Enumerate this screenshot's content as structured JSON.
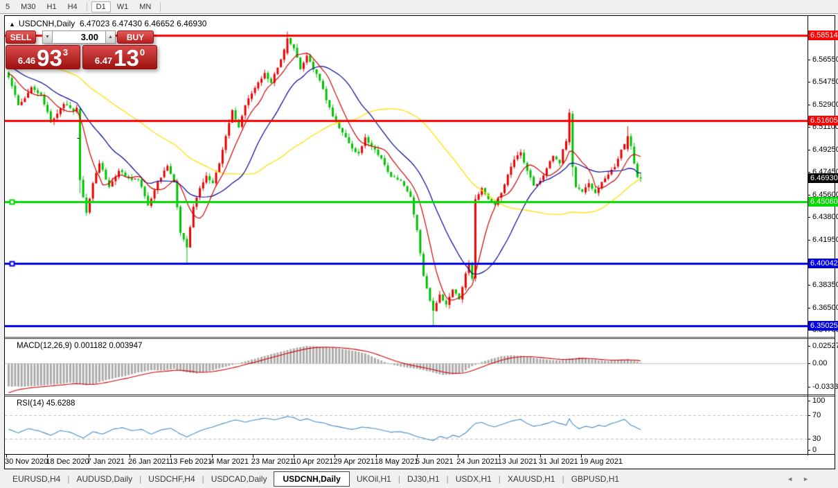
{
  "toolbar": {
    "timeframes": [
      {
        "label": "5",
        "selected": false
      },
      {
        "label": "M30",
        "selected": false
      },
      {
        "label": "H1",
        "selected": false
      },
      {
        "label": "H4",
        "selected": false
      },
      {
        "label": "D1",
        "selected": true
      },
      {
        "label": "W1",
        "selected": false
      },
      {
        "label": "MN",
        "selected": false
      }
    ],
    "separator_after": [
      3,
      6
    ]
  },
  "chart": {
    "title_arrow": "▲",
    "symbol_title": "USDCNH,Daily",
    "ohlc_text": "6.47023 6.47430 6.46652 6.46930",
    "annotation_dash": "-",
    "trade_panel": {
      "sell_label": "SELL",
      "buy_label": "BUY",
      "volume": "3.00",
      "spin_down": "▼",
      "spin_up": "▲",
      "bid_small": "6.46",
      "bid_big": "93",
      "bid_sup": "3",
      "ask_small": "6.47",
      "ask_big": "13",
      "ask_sup": "0"
    }
  },
  "chart_data": [
    {
      "type": "candlestick",
      "title": "USDCNH,Daily",
      "ohlc_current": {
        "open": 6.47023,
        "high": 6.4743,
        "low": 6.46652,
        "close": 6.4693
      },
      "bars": 196,
      "up_color": "#e80000",
      "down_color": "#00c000",
      "price_range": [
        6.3413,
        6.5995
      ],
      "y_axis_ticks": [
        "6.56550",
        "6.54750",
        "6.52900",
        "6.51100",
        "6.49250",
        "6.47450",
        "6.45600",
        "6.43800",
        "6.41950",
        "6.38350",
        "6.36500",
        "6.34700"
      ],
      "x_axis_labels": [
        "30 Nov 2020",
        "18 Dec 2020",
        "7 Jan 2021",
        "26 Jan 2021",
        "13 Feb 2021",
        "4 Mar 2021",
        "23 Mar 2021",
        "10 Apr 2021",
        "29 Apr 2021",
        "18 May 2021",
        "5 Jun 2021",
        "24 Jun 2021",
        "13 Jul 2021",
        "31 Jul 2021",
        "19 Aug 2021"
      ],
      "current_price_label": {
        "text": "6.46930",
        "bg": "#000000"
      },
      "hlines": [
        {
          "price": 6.58514,
          "label": "6.58514",
          "color": "#ff0000",
          "handle": false
        },
        {
          "price": 6.51605,
          "label": "6.51605",
          "color": "#ff0000",
          "handle": false
        },
        {
          "price": 6.4506,
          "label": "6.45060",
          "color": "#00d800",
          "handle": true
        },
        {
          "price": 6.40042,
          "label": "6.40042",
          "color": "#0000e8",
          "handle": true
        },
        {
          "price": 6.35025,
          "label": "6.35025",
          "color": "#0000e8",
          "handle": false
        }
      ],
      "moving_averages": [
        {
          "period": 8,
          "color": "#cc0000"
        },
        {
          "period": 21,
          "color": "#000099"
        },
        {
          "period": 55,
          "color": "#ffdf00"
        }
      ],
      "close_keypoints": [
        [
          0,
          6.551
        ],
        [
          3,
          6.5285
        ],
        [
          7,
          6.543
        ],
        [
          10,
          6.537
        ],
        [
          13,
          6.5145
        ],
        [
          17,
          6.5295
        ],
        [
          20,
          6.5235
        ],
        [
          21,
          6.5265
        ],
        [
          22,
          6.468
        ],
        [
          24,
          6.4415
        ],
        [
          26,
          6.4655
        ],
        [
          28,
          6.4815
        ],
        [
          31,
          6.4625
        ],
        [
          34,
          6.4755
        ],
        [
          37,
          6.4695
        ],
        [
          40,
          6.4685
        ],
        [
          43,
          6.4475
        ],
        [
          46,
          6.4665
        ],
        [
          49,
          6.4795
        ],
        [
          51,
          6.4665
        ],
        [
          53,
          6.4255
        ],
        [
          55,
          6.4135
        ],
        [
          57,
          6.4465
        ],
        [
          59,
          6.4615
        ],
        [
          61,
          6.4715
        ],
        [
          63,
          6.4655
        ],
        [
          65,
          6.4815
        ],
        [
          67,
          6.5035
        ],
        [
          69,
          6.5245
        ],
        [
          71,
          6.5105
        ],
        [
          73,
          6.5285
        ],
        [
          76,
          6.5425
        ],
        [
          79,
          6.5545
        ],
        [
          81,
          6.5465
        ],
        [
          84,
          6.5655
        ],
        [
          86,
          6.5825
        ],
        [
          88,
          6.5745
        ],
        [
          90,
          6.5575
        ],
        [
          92,
          6.5685
        ],
        [
          94,
          6.5575
        ],
        [
          96,
          6.5485
        ],
        [
          98,
          6.5325
        ],
        [
          100,
          6.5195
        ],
        [
          103,
          6.5065
        ],
        [
          106,
          6.4935
        ],
        [
          108,
          6.4895
        ],
        [
          110,
          6.5025
        ],
        [
          112,
          6.4955
        ],
        [
          115,
          6.4855
        ],
        [
          118,
          6.4705
        ],
        [
          121,
          6.4675
        ],
        [
          124,
          6.4545
        ],
        [
          126,
          6.4275
        ],
        [
          128,
          6.3905
        ],
        [
          130,
          6.3705
        ],
        [
          131,
          6.3625
        ],
        [
          133,
          6.3755
        ],
        [
          135,
          6.3675
        ],
        [
          137,
          6.3795
        ],
        [
          139,
          6.3715
        ],
        [
          141,
          6.3925
        ],
        [
          142,
          6.4005
        ],
        [
          143,
          6.3885
        ],
        [
          144,
          6.4525
        ],
        [
          146,
          6.4615
        ],
        [
          148,
          6.4525
        ],
        [
          150,
          6.4485
        ],
        [
          152,
          6.4575
        ],
        [
          154,
          6.4725
        ],
        [
          156,
          6.4845
        ],
        [
          158,
          6.4905
        ],
        [
          160,
          6.4755
        ],
        [
          162,
          6.4635
        ],
        [
          164,
          6.4675
        ],
        [
          166,
          6.4775
        ],
        [
          168,
          6.4875
        ],
        [
          170,
          6.4815
        ],
        [
          171,
          6.493
        ],
        [
          172,
          6.4995
        ],
        [
          173,
          6.5225
        ],
        [
          174,
          6.4785
        ],
        [
          175,
          6.4625
        ],
        [
          177,
          6.4585
        ],
        [
          179,
          6.4655
        ],
        [
          181,
          6.4575
        ],
        [
          183,
          6.4665
        ],
        [
          185,
          6.4725
        ],
        [
          187,
          6.4785
        ],
        [
          189,
          6.4925
        ],
        [
          191,
          6.5035
        ],
        [
          192,
          6.4955
        ],
        [
          193,
          6.4815
        ],
        [
          194,
          6.4705
        ],
        [
          195,
          6.4693
        ]
      ],
      "special_bars": [
        {
          "i": 22,
          "o": 6.5255,
          "h": 6.527,
          "l": 6.4575,
          "c": 6.468
        },
        {
          "i": 55,
          "o": 6.4205,
          "h": 6.423,
          "l": 6.4008,
          "c": 6.4135
        },
        {
          "i": 86,
          "o": 6.5705,
          "h": 6.588,
          "l": 6.569,
          "c": 6.5825
        },
        {
          "i": 131,
          "o": 6.3705,
          "h": 6.373,
          "l": 6.3505,
          "c": 6.3625
        },
        {
          "i": 144,
          "o": 6.3885,
          "h": 6.456,
          "l": 6.386,
          "c": 6.4525
        },
        {
          "i": 173,
          "o": 6.4985,
          "h": 6.5255,
          "l": 6.496,
          "c": 6.5225
        },
        {
          "i": 174,
          "o": 6.5215,
          "h": 6.524,
          "l": 6.471,
          "c": 6.4785
        },
        {
          "i": 191,
          "o": 6.493,
          "h": 6.5115,
          "l": 6.491,
          "c": 6.5035
        },
        {
          "i": 195,
          "o": 6.47023,
          "h": 6.4743,
          "l": 6.46652,
          "c": 6.4693
        }
      ]
    },
    {
      "type": "macd_histogram",
      "label": "MACD(12,26,9)",
      "values_text": "0.001182 0.003947",
      "macd_value": 0.001182,
      "signal_value": 0.003947,
      "axis_labels": [
        "0.025275",
        "0.00",
        "-0.033388"
      ],
      "axis_values": [
        0.025275,
        0.0,
        -0.033388
      ],
      "range": [
        -0.0445,
        0.0354
      ],
      "bar_color": "#ababab",
      "signal_color": "#d00000",
      "keypoints": [
        [
          0,
          -0.033
        ],
        [
          5,
          -0.0333
        ],
        [
          10,
          -0.0318
        ],
        [
          15,
          -0.0298
        ],
        [
          19,
          -0.0272
        ],
        [
          22,
          -0.0298
        ],
        [
          24,
          -0.0312
        ],
        [
          27,
          -0.0285
        ],
        [
          30,
          -0.0238
        ],
        [
          33,
          -0.0205
        ],
        [
          36,
          -0.018
        ],
        [
          40,
          -0.0128
        ],
        [
          44,
          -0.0095
        ],
        [
          48,
          -0.0102
        ],
        [
          51,
          -0.0075
        ],
        [
          54,
          -0.0118
        ],
        [
          58,
          -0.0145
        ],
        [
          62,
          -0.0108
        ],
        [
          66,
          -0.0058
        ],
        [
          70,
          -0.0008
        ],
        [
          74,
          0.0045
        ],
        [
          78,
          0.0098
        ],
        [
          82,
          0.0148
        ],
        [
          86,
          0.0195
        ],
        [
          89,
          0.0228
        ],
        [
          92,
          0.0253
        ],
        [
          95,
          0.0247
        ],
        [
          98,
          0.0237
        ],
        [
          101,
          0.0224
        ],
        [
          104,
          0.0202
        ],
        [
          107,
          0.0178
        ],
        [
          110,
          0.0148
        ],
        [
          113,
          0.0082
        ],
        [
          116,
          0.0022
        ],
        [
          119,
          -0.0022
        ],
        [
          122,
          -0.005
        ],
        [
          125,
          -0.007
        ],
        [
          128,
          -0.0095
        ],
        [
          131,
          -0.013
        ],
        [
          134,
          -0.0165
        ],
        [
          137,
          -0.0158
        ],
        [
          140,
          -0.0128
        ],
        [
          143,
          -0.004
        ],
        [
          146,
          0.0022
        ],
        [
          149,
          0.007
        ],
        [
          152,
          0.0105
        ],
        [
          155,
          0.0118
        ],
        [
          158,
          0.0112
        ],
        [
          161,
          0.0095
        ],
        [
          164,
          0.007
        ],
        [
          167,
          0.0052
        ],
        [
          170,
          0.0045
        ],
        [
          173,
          0.0068
        ],
        [
          176,
          0.0088
        ],
        [
          179,
          0.0065
        ],
        [
          182,
          0.0046
        ],
        [
          185,
          0.0038
        ],
        [
          188,
          0.0052
        ],
        [
          191,
          0.006
        ],
        [
          193,
          0.004
        ],
        [
          195,
          0.0012
        ]
      ]
    },
    {
      "type": "line",
      "label": "RSI(14)",
      "value_text": "45.6288",
      "current_value": 45.6288,
      "line_color": "#3f8cc8",
      "levels": [
        "100",
        "70",
        "30",
        "0"
      ],
      "level_values": [
        100,
        70,
        30,
        0
      ],
      "dashed_levels": [
        70,
        30
      ],
      "range": [
        0,
        100
      ],
      "keypoints": [
        [
          0,
          46
        ],
        [
          3,
          40
        ],
        [
          6,
          47
        ],
        [
          9,
          44
        ],
        [
          13,
          36
        ],
        [
          16,
          44
        ],
        [
          19,
          41
        ],
        [
          23,
          31
        ],
        [
          26,
          42
        ],
        [
          29,
          38
        ],
        [
          32,
          46
        ],
        [
          35,
          49
        ],
        [
          38,
          44
        ],
        [
          41,
          46
        ],
        [
          44,
          38
        ],
        [
          47,
          45
        ],
        [
          50,
          48
        ],
        [
          53,
          38
        ],
        [
          55,
          33
        ],
        [
          58,
          41
        ],
        [
          61,
          47
        ],
        [
          64,
          52
        ],
        [
          67,
          57
        ],
        [
          70,
          62
        ],
        [
          73,
          58
        ],
        [
          76,
          62
        ],
        [
          79,
          65
        ],
        [
          82,
          62
        ],
        [
          86,
          68
        ],
        [
          88,
          66
        ],
        [
          90,
          61
        ],
        [
          92,
          64
        ],
        [
          94,
          60
        ],
        [
          97,
          57
        ],
        [
          100,
          52
        ],
        [
          103,
          49
        ],
        [
          106,
          46
        ],
        [
          109,
          50
        ],
        [
          112,
          48
        ],
        [
          115,
          45
        ],
        [
          118,
          41
        ],
        [
          121,
          42
        ],
        [
          124,
          38
        ],
        [
          127,
          32
        ],
        [
          131,
          27
        ],
        [
          133,
          34
        ],
        [
          135,
          31
        ],
        [
          137,
          36
        ],
        [
          139,
          33
        ],
        [
          141,
          40
        ],
        [
          144,
          56
        ],
        [
          146,
          58
        ],
        [
          148,
          53
        ],
        [
          150,
          50
        ],
        [
          152,
          54
        ],
        [
          154,
          58
        ],
        [
          156,
          61
        ],
        [
          158,
          63
        ],
        [
          160,
          56
        ],
        [
          162,
          51
        ],
        [
          164,
          53
        ],
        [
          166,
          56
        ],
        [
          168,
          60
        ],
        [
          170,
          56
        ],
        [
          172,
          53
        ],
        [
          173,
          64
        ],
        [
          174,
          55
        ],
        [
          176,
          47
        ],
        [
          178,
          51
        ],
        [
          180,
          49
        ],
        [
          182,
          53
        ],
        [
          184,
          51
        ],
        [
          186,
          56
        ],
        [
          188,
          59
        ],
        [
          190,
          63
        ],
        [
          192,
          53
        ],
        [
          194,
          48
        ],
        [
          195,
          45.6
        ]
      ]
    }
  ],
  "bottom_tabs": {
    "divider": "|",
    "nav_left": "◄",
    "nav_right": "►",
    "tabs": [
      {
        "label": "EURUSD,H4",
        "active": false
      },
      {
        "label": "AUDUSD,Daily",
        "active": false
      },
      {
        "label": "USDCHF,H4",
        "active": false
      },
      {
        "label": "USDCAD,Daily",
        "active": false
      },
      {
        "label": "USDCNH,Daily",
        "active": true
      },
      {
        "label": "UKOil,H1",
        "active": false
      },
      {
        "label": "DJ30,H1",
        "active": false
      },
      {
        "label": "USDX,H1",
        "active": false
      },
      {
        "label": "XAUUSD,H1",
        "active": false
      },
      {
        "label": "GBPUSD,H1",
        "active": false
      }
    ]
  }
}
